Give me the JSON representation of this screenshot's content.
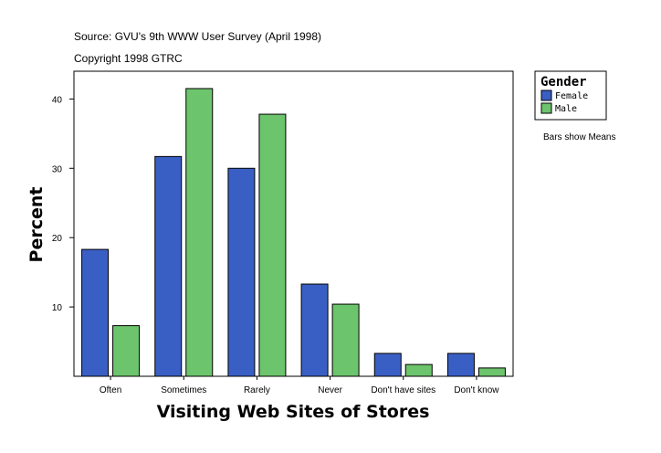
{
  "chart_data": {
    "type": "bar",
    "source": "Source: GVU's 9th WWW User Survey (April 1998)",
    "copyright": "Copyright 1998 GTRC",
    "xlabel": "Visiting Web Sites of Stores",
    "ylabel": "Percent",
    "categories": [
      "Often",
      "Sometimes",
      "Rarely",
      "Never",
      "Don't have sites",
      "Don't know"
    ],
    "series": [
      {
        "name": "Female",
        "color": "#3a5fc4",
        "values": [
          18.3,
          31.7,
          30.0,
          13.3,
          3.3,
          3.3
        ]
      },
      {
        "name": "Male",
        "color": "#6cc46c",
        "values": [
          7.3,
          41.5,
          37.8,
          10.4,
          1.7,
          1.2
        ]
      }
    ],
    "ylim": [
      0,
      44
    ],
    "yticks": [
      10,
      20,
      30,
      40
    ],
    "legend": {
      "title": "Gender",
      "placement": "right"
    },
    "note": "Bars show Means",
    "grid": false
  }
}
